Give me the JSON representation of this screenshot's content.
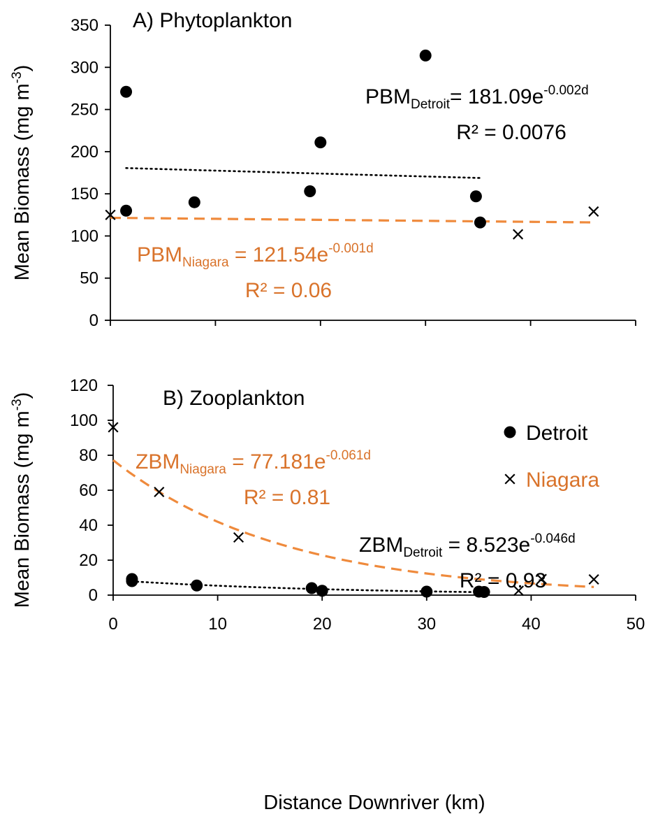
{
  "chart_data": [
    {
      "type": "scatter",
      "title": "A) Phytoplankton",
      "ylabel": "Mean Biomass (mg m⁻³)",
      "ylabel_main": "Mean Biomass (mg m",
      "ylabel_sup": "-3",
      "ylabel_close": ")",
      "ylim": [
        0,
        350
      ],
      "yticks": [
        0,
        50,
        100,
        150,
        200,
        250,
        300,
        350
      ],
      "xlim": [
        0,
        50
      ],
      "x_tick_labels_shown": false,
      "grid": false,
      "series": [
        {
          "name": "Detroit",
          "marker": "circle",
          "color": "#000000",
          "x": [
            1.5,
            1.5,
            8,
            19,
            20,
            30,
            34.8,
            35.2
          ],
          "y": [
            271,
            130,
            140,
            153,
            211,
            314,
            147,
            116
          ]
        },
        {
          "name": "Niagara",
          "marker": "x",
          "color": "#000000",
          "x": [
            0,
            38.8,
            46
          ],
          "y": [
            125,
            102,
            129
          ]
        }
      ],
      "trendlines": [
        {
          "series": "Detroit",
          "kind": "exponential",
          "a": 181.09,
          "b": -0.002,
          "x_range": [
            1.5,
            35.2
          ],
          "color": "#000000",
          "style": "dotted",
          "equation": {
            "lhs": "PBM",
            "sub": "Detroit",
            "mid": "= 181.09e",
            "sup": "-0.002d"
          },
          "r2": "R² = 0.0076"
        },
        {
          "series": "Niagara",
          "kind": "exponential",
          "a": 121.54,
          "b": -0.001,
          "x_range": [
            0,
            46
          ],
          "color": "#ef8a3c",
          "style": "dashed",
          "equation": {
            "lhs": "PBM",
            "sub": "Niagara",
            "mid": " = 121.54e",
            "sup": "-0.001d"
          },
          "r2": "R² = 0.06"
        }
      ]
    },
    {
      "type": "scatter",
      "title": "B) Zooplankton",
      "xlabel": "Distance Downriver (km)",
      "ylabel": "Mean Biomass (mg m⁻³)",
      "ylabel_main": "Mean Biomass (mg m",
      "ylabel_sup": "-3",
      "ylabel_close": ")",
      "xlim": [
        0,
        50
      ],
      "xticks": [
        0,
        10,
        20,
        30,
        40,
        50
      ],
      "ylim": [
        0,
        120
      ],
      "yticks": [
        0,
        20,
        40,
        60,
        80,
        100,
        120
      ],
      "grid": false,
      "legend": {
        "position": "right",
        "entries": [
          "Detroit",
          "Niagara"
        ]
      },
      "series": [
        {
          "name": "Detroit",
          "marker": "circle",
          "color": "#000000",
          "x": [
            1.8,
            1.8,
            8,
            19,
            20,
            30,
            35,
            35.5
          ],
          "y": [
            9.2,
            8,
            5.5,
            4,
            2.5,
            2,
            2,
            1.8
          ]
        },
        {
          "name": "Niagara",
          "marker": "x",
          "color": "#000000",
          "x": [
            0,
            4.4,
            12,
            38.8,
            41,
            46
          ],
          "y": [
            96,
            59,
            33,
            2.5,
            9.2,
            9
          ]
        }
      ],
      "trendlines": [
        {
          "series": "Niagara",
          "kind": "exponential",
          "a": 77.181,
          "b": -0.061,
          "x_range": [
            0,
            46
          ],
          "color": "#ef8a3c",
          "style": "dashed",
          "equation": {
            "lhs": "ZBM",
            "sub": "Niagara",
            "mid": " = 77.181e",
            "sup": "-0.061d"
          },
          "r2": "R² = 0.81"
        },
        {
          "series": "Detroit",
          "kind": "exponential",
          "a": 8.523,
          "b": -0.046,
          "x_range": [
            1.8,
            35.5
          ],
          "color": "#000000",
          "style": "dotted",
          "equation": {
            "lhs": "ZBM",
            "sub": "Detroit",
            "mid": " = 8.523e",
            "sup": "-0.046d"
          },
          "r2": "R² = 0.93"
        }
      ]
    }
  ],
  "colors": {
    "niagara_accent": "#d9732b",
    "niagara_trend": "#ef8a3c",
    "detroit": "#000000"
  }
}
